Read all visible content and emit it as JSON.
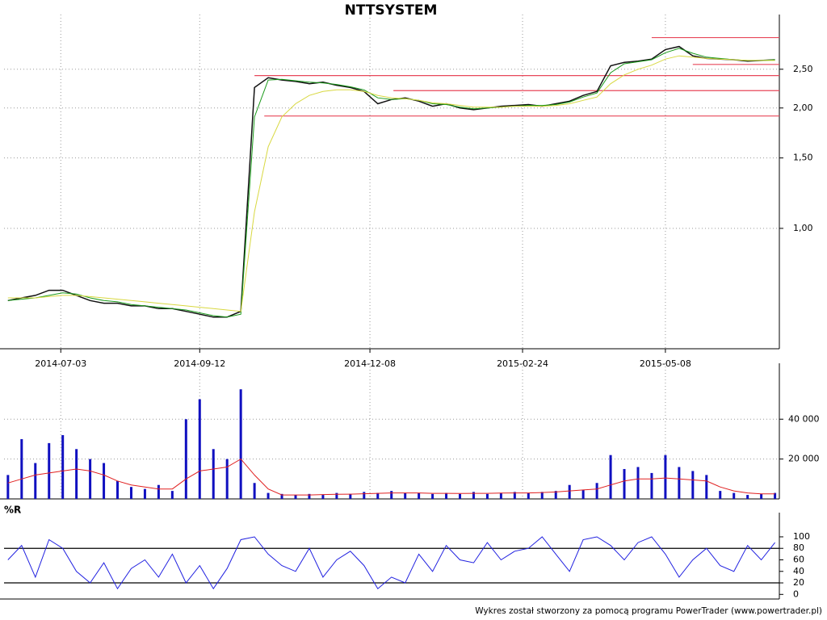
{
  "chart_data": [
    {
      "type": "line",
      "title": "NTTSYSTEM",
      "log_scale": true,
      "grid": true,
      "xlim": [
        "2014-06-04",
        "2015-07-04"
      ],
      "x": [
        "2014-06-06",
        "2014-06-13",
        "2014-06-20",
        "2014-06-27",
        "2014-07-04",
        "2014-07-11",
        "2014-07-18",
        "2014-07-25",
        "2014-08-01",
        "2014-08-08",
        "2014-08-15",
        "2014-08-22",
        "2014-08-29",
        "2014-09-05",
        "2014-09-12",
        "2014-09-19",
        "2014-09-26",
        "2014-10-03",
        "2014-10-10",
        "2014-10-17",
        "2014-10-24",
        "2014-10-31",
        "2014-11-07",
        "2014-11-14",
        "2014-11-21",
        "2014-11-28",
        "2014-12-05",
        "2014-12-12",
        "2014-12-19",
        "2014-12-26",
        "2015-01-02",
        "2015-01-09",
        "2015-01-16",
        "2015-01-23",
        "2015-01-30",
        "2015-02-06",
        "2015-02-13",
        "2015-02-20",
        "2015-02-27",
        "2015-03-06",
        "2015-03-13",
        "2015-03-20",
        "2015-03-27",
        "2015-04-03",
        "2015-04-10",
        "2015-04-17",
        "2015-04-24",
        "2015-05-01",
        "2015-05-08",
        "2015-05-15",
        "2015-05-22",
        "2015-05-29",
        "2015-06-05",
        "2015-06-12",
        "2015-06-19",
        "2015-06-26",
        "2015-07-03"
      ],
      "xticks": [
        "2014-07-03",
        "2014-09-12",
        "2014-12-08",
        "2015-02-24",
        "2015-05-08"
      ],
      "ylim": [
        0.5,
        3.27
      ],
      "yticks": [
        {
          "value": 1,
          "label": "1,00"
        },
        {
          "value": 1.5,
          "label": "1,50"
        },
        {
          "value": 2,
          "label": "2,00"
        },
        {
          "value": 2.5,
          "label": "2,50"
        }
      ],
      "levels": [
        {
          "value": 3.0,
          "from": "2015-05-01"
        },
        {
          "value": 2.57,
          "from": "2015-05-22"
        },
        {
          "value": 2.41,
          "from": "2014-10-10"
        },
        {
          "value": 2.21,
          "from": "2014-12-20"
        },
        {
          "value": 1.91,
          "from": "2014-10-15"
        }
      ],
      "level_color": "#e8485a",
      "series": [
        {
          "style": "line",
          "color": "#111111",
          "width": 1.5,
          "values": [
            0.66,
            0.67,
            0.68,
            0.7,
            0.7,
            0.68,
            0.66,
            0.65,
            0.65,
            0.64,
            0.64,
            0.63,
            0.63,
            0.62,
            0.61,
            0.6,
            0.6,
            0.62,
            2.25,
            2.38,
            2.35,
            2.33,
            2.3,
            2.32,
            2.28,
            2.25,
            2.2,
            2.05,
            2.1,
            2.12,
            2.08,
            2.02,
            2.05,
            2.0,
            1.98,
            2.0,
            2.02,
            2.03,
            2.04,
            2.02,
            2.05,
            2.08,
            2.15,
            2.2,
            2.55,
            2.6,
            2.62,
            2.65,
            2.8,
            2.85,
            2.7,
            2.66,
            2.65,
            2.64,
            2.62,
            2.63,
            2.64
          ]
        },
        {
          "style": "line",
          "color": "#1a9a1a",
          "width": 1,
          "values": [
            0.66,
            0.665,
            0.67,
            0.68,
            0.69,
            0.685,
            0.67,
            0.66,
            0.655,
            0.645,
            0.64,
            0.635,
            0.63,
            0.625,
            0.615,
            0.605,
            0.6,
            0.61,
            1.9,
            2.35,
            2.36,
            2.34,
            2.32,
            2.31,
            2.29,
            2.26,
            2.22,
            2.12,
            2.1,
            2.11,
            2.09,
            2.05,
            2.04,
            2.01,
            1.99,
            2.0,
            2.01,
            2.02,
            2.03,
            2.03,
            2.04,
            2.07,
            2.13,
            2.18,
            2.45,
            2.58,
            2.61,
            2.64,
            2.75,
            2.82,
            2.74,
            2.68,
            2.66,
            2.64,
            2.63,
            2.63,
            2.64
          ]
        },
        {
          "style": "line",
          "color": "#d8d840",
          "width": 1,
          "values": [
            0.67,
            0.67,
            0.67,
            0.675,
            0.68,
            0.68,
            0.675,
            0.67,
            0.665,
            0.66,
            0.655,
            0.65,
            0.645,
            0.64,
            0.635,
            0.63,
            0.625,
            0.62,
            1.1,
            1.6,
            1.9,
            2.05,
            2.15,
            2.2,
            2.22,
            2.22,
            2.2,
            2.15,
            2.12,
            2.11,
            2.09,
            2.06,
            2.05,
            2.03,
            2.01,
            2.01,
            2.01,
            2.02,
            2.02,
            2.02,
            2.03,
            2.05,
            2.09,
            2.13,
            2.3,
            2.42,
            2.5,
            2.56,
            2.65,
            2.7,
            2.68,
            2.66,
            2.65,
            2.64,
            2.63,
            2.63,
            2.63
          ]
        }
      ]
    },
    {
      "type": "bar",
      "grid": true,
      "ylim": [
        0,
        64000
      ],
      "yticks": [
        {
          "value": 20000,
          "label": "20 000"
        },
        {
          "value": 40000,
          "label": "40 000"
        }
      ],
      "series": [
        {
          "style": "bar",
          "color": "#1010c0",
          "values": [
            12000,
            30000,
            18000,
            28000,
            32000,
            25000,
            20000,
            18000,
            9000,
            6000,
            5000,
            7000,
            4000,
            40000,
            50000,
            25000,
            20000,
            55000,
            8000,
            3000,
            2500,
            2000,
            2500,
            2000,
            3000,
            2500,
            3500,
            3000,
            4000,
            3000,
            3000,
            2500,
            3000,
            2500,
            3500,
            2500,
            3000,
            3500,
            3000,
            3500,
            4000,
            7000,
            4500,
            8000,
            22000,
            15000,
            16000,
            13000,
            22000,
            16000,
            14000,
            12000,
            4000,
            3000,
            2000,
            2500,
            3000
          ]
        },
        {
          "style": "line",
          "color": "#e02020",
          "width": 1,
          "values": [
            8000,
            10000,
            12000,
            13000,
            14000,
            15000,
            14000,
            12000,
            9000,
            7000,
            6000,
            5000,
            5000,
            10000,
            14000,
            15000,
            16000,
            20000,
            12000,
            5000,
            2000,
            2000,
            2000,
            2200,
            2300,
            2400,
            2600,
            2800,
            3000,
            3000,
            3000,
            2800,
            2800,
            2700,
            2800,
            2800,
            2900,
            3000,
            3000,
            3200,
            3500,
            4000,
            4500,
            5000,
            7000,
            9000,
            10000,
            10000,
            10500,
            10000,
            9500,
            9000,
            6000,
            4000,
            3000,
            2500,
            2500
          ]
        }
      ]
    },
    {
      "type": "line",
      "title": "%R",
      "grid": false,
      "ylim": [
        -8,
        128
      ],
      "yticks": [
        0,
        20,
        40,
        60,
        80,
        100
      ],
      "levels": [
        {
          "value": 20
        },
        {
          "value": 80
        }
      ],
      "level_color": "#000000",
      "series": [
        {
          "style": "line",
          "color": "#2020e0",
          "width": 1,
          "values": [
            60,
            85,
            30,
            95,
            80,
            40,
            20,
            55,
            10,
            45,
            60,
            30,
            70,
            20,
            50,
            10,
            45,
            95,
            100,
            70,
            50,
            40,
            80,
            30,
            60,
            75,
            50,
            10,
            30,
            20,
            70,
            40,
            85,
            60,
            55,
            90,
            60,
            75,
            80,
            100,
            70,
            40,
            95,
            100,
            85,
            60,
            90,
            100,
            70,
            30,
            60,
            80,
            50,
            40,
            85,
            60,
            90
          ]
        }
      ]
    }
  ],
  "footer": "Wykres został stworzony za pomocą programu PowerTrader (www.powertrader.pl)"
}
